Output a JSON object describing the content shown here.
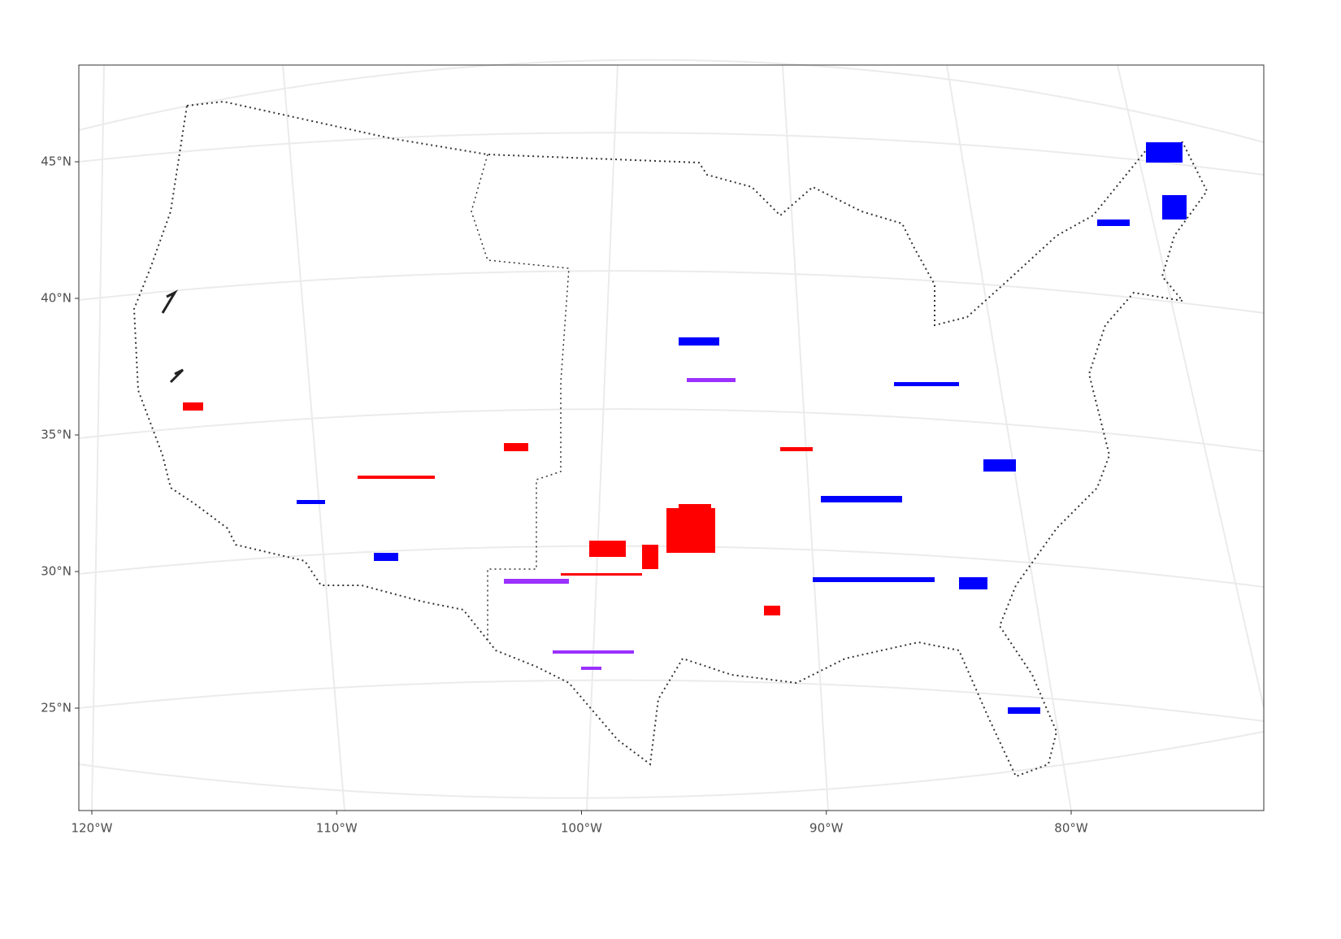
{
  "map": {
    "yticks": [
      {
        "value": 45,
        "label": "45°N"
      },
      {
        "value": 40,
        "label": "40°N"
      },
      {
        "value": 35,
        "label": "35°N"
      },
      {
        "value": 30,
        "label": "30°N"
      },
      {
        "value": 25,
        "label": "25°N"
      }
    ],
    "xticks": [
      {
        "value": -120,
        "label": "120°W"
      },
      {
        "value": -110,
        "label": "110°W"
      },
      {
        "value": -100,
        "label": "100°W"
      },
      {
        "value": -90,
        "label": "90°W"
      },
      {
        "value": -80,
        "label": "80°W"
      }
    ]
  }
}
